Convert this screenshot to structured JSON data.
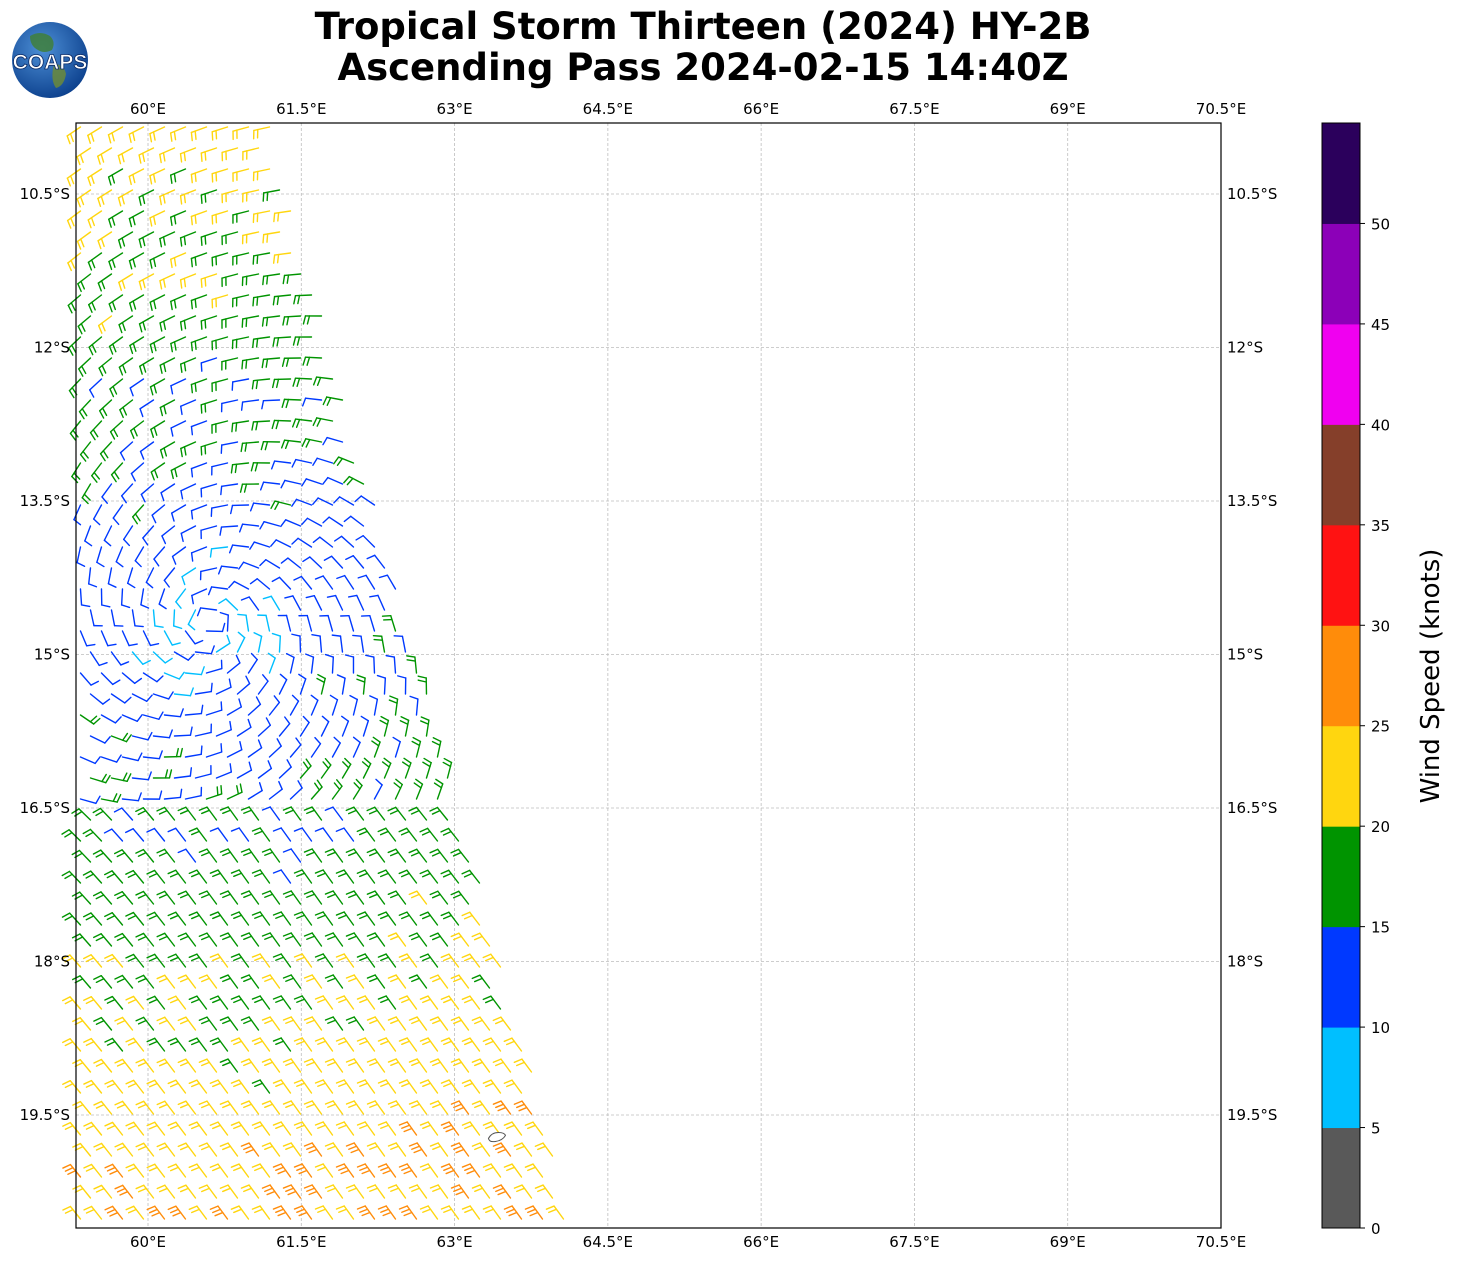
{
  "title": {
    "line1": "Tropical Storm Thirteen (2024) HY-2B",
    "line2": "Ascending Pass 2024-02-15 14:40Z"
  },
  "logo": {
    "text": "COAPS",
    "icon": "globe-logo"
  },
  "map": {
    "lon_range": [
      59.3,
      70.5
    ],
    "lat_range": [
      -21.3,
      -10.5
    ],
    "lon_ticks": [
      "60°E",
      "61.5°E",
      "63°E",
      "64.5°E",
      "66°E",
      "67.5°E",
      "69°E",
      "70.5°E"
    ],
    "lon_tick_values": [
      60,
      61.5,
      63,
      64.5,
      66,
      67.5,
      69,
      70.5
    ],
    "lat_ticks": [
      "10.5°S",
      "12°S",
      "13.5°S",
      "15°S",
      "16.5°S",
      "18°S",
      "19.5°S"
    ],
    "lat_tick_values": [
      -10.5,
      -12,
      -13.5,
      -15,
      -16.5,
      -18,
      -19.5
    ],
    "gridlines": true,
    "swath": "western edge of the map, roughly 59.3°E to 64.2°E, narrowing northward to about 61.2°E near 10°S",
    "storm_center_approx": {
      "lon": 60.6,
      "lat": -14.7
    },
    "island_approx": {
      "lon": 63.4,
      "lat": -19.7
    }
  },
  "colorbar": {
    "label": "Wind Speed (knots)",
    "ticks": [
      "0",
      "5",
      "10",
      "15",
      "20",
      "25",
      "30",
      "35",
      "40",
      "45",
      "50"
    ],
    "bins": [
      {
        "min": 0,
        "max": 5,
        "color": "#595959"
      },
      {
        "min": 5,
        "max": 10,
        "color": "#00bfff"
      },
      {
        "min": 10,
        "max": 15,
        "color": "#0039ff"
      },
      {
        "min": 15,
        "max": 20,
        "color": "#009400"
      },
      {
        "min": 20,
        "max": 25,
        "color": "#ffd60f"
      },
      {
        "min": 25,
        "max": 30,
        "color": "#ff8c0a"
      },
      {
        "min": 30,
        "max": 35,
        "color": "#ff1212"
      },
      {
        "min": 35,
        "max": 40,
        "color": "#853f2a"
      },
      {
        "min": 40,
        "max": 45,
        "color": "#f000f0"
      },
      {
        "min": 45,
        "max": 50,
        "color": "#8c00b8"
      },
      {
        "min": 50,
        "max": 55,
        "color": "#2b005c"
      }
    ]
  }
}
